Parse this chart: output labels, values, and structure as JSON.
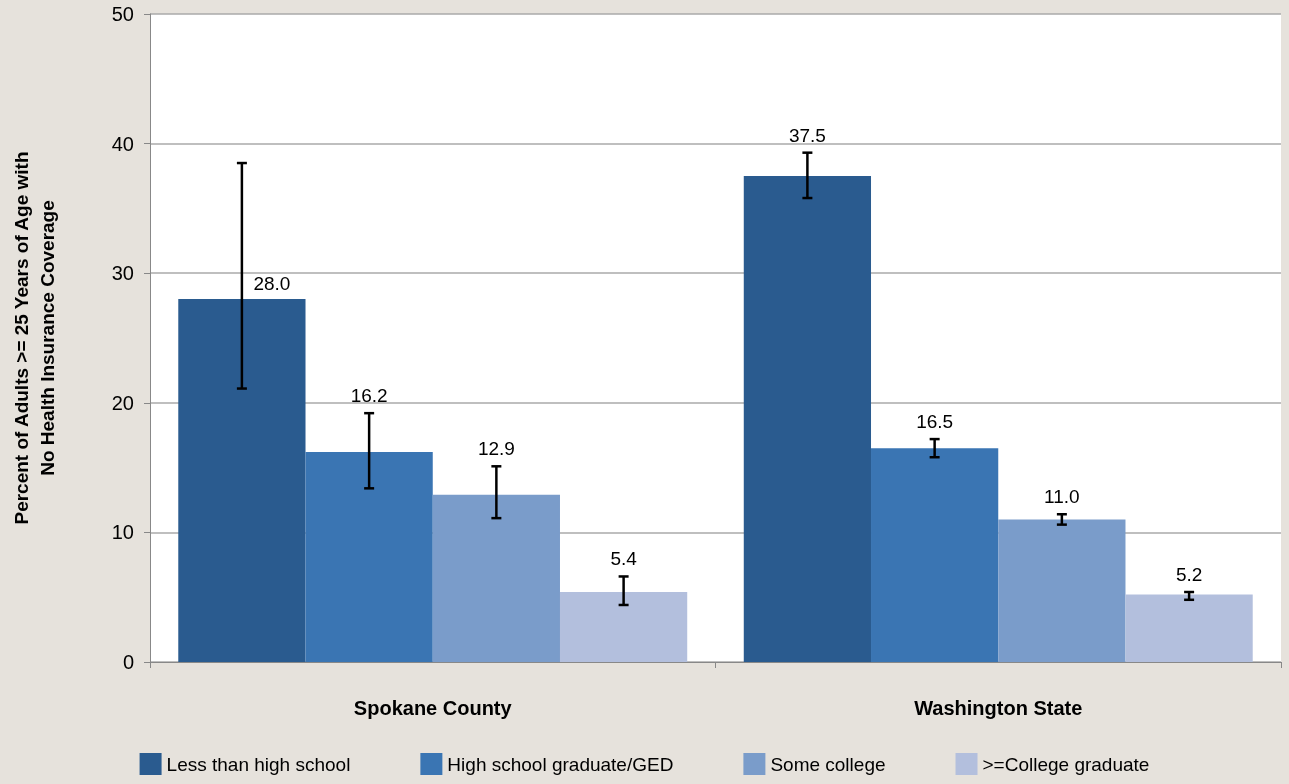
{
  "chart_data": {
    "type": "bar",
    "categories": [
      "Spokane County",
      "Washington State"
    ],
    "ylabel": "Percent of Adults >= 25 Years of Age with\nNo Health Insurance Coverage",
    "ylim": [
      0,
      50
    ],
    "yticks": [
      0,
      10,
      20,
      30,
      40,
      50
    ],
    "grid": "y",
    "legend": "bottom",
    "series": [
      {
        "name": "Less than high school",
        "color": "#2a5b8f",
        "values": [
          28.0,
          37.5
        ],
        "value_labels": [
          "28.0",
          "37.5"
        ],
        "errors": [
          [
            21.1,
            38.5
          ],
          [
            35.8,
            39.3
          ]
        ]
      },
      {
        "name": "High school graduate/GED",
        "color": "#3a75b3",
        "values": [
          16.2,
          16.5
        ],
        "value_labels": [
          "16.2",
          "16.5"
        ],
        "errors": [
          [
            13.4,
            19.2
          ],
          [
            15.8,
            17.2
          ]
        ]
      },
      {
        "name": "Some college",
        "color": "#7a9cca",
        "values": [
          12.9,
          11.0
        ],
        "value_labels": [
          "12.9",
          "11.0"
        ],
        "errors": [
          [
            11.1,
            15.1
          ],
          [
            10.6,
            11.4
          ]
        ]
      },
      {
        "name": ">=College graduate",
        "color": "#b3bfdd",
        "values": [
          5.4,
          5.2
        ],
        "value_labels": [
          "5.4",
          "5.2"
        ],
        "errors": [
          [
            4.4,
            6.6
          ],
          [
            4.8,
            5.4
          ]
        ]
      }
    ]
  }
}
